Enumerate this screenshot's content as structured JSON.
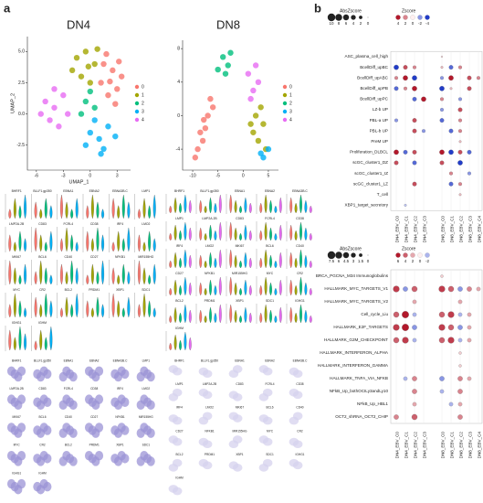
{
  "panel_labels": [
    "a",
    "b"
  ],
  "umaps": [
    {
      "type": "scatter",
      "title": "DN4",
      "x_label": "UMAP_1",
      "y_label": "UMAP_2",
      "xlim": [
        -7,
        4.5
      ],
      "ylim": [
        -4.5,
        6.2
      ],
      "xticks": [
        -6,
        -3,
        0,
        3
      ],
      "yticks": [
        -2.5,
        {
          "value": 0,
          "label": "0.0"
        },
        2.5,
        {
          "value": 5,
          "label": "5.0"
        }
      ],
      "series": [
        {
          "name": "0",
          "color": "#f8766d",
          "x": [
            1.5,
            2.5,
            3,
            2,
            3.5,
            1.2,
            2.8,
            1.8,
            3.2,
            2.2
          ],
          "y": [
            4,
            3.5,
            2,
            1.5,
            3,
            2.5,
            0.8,
            4.8,
            4.2,
            2.6
          ]
        },
        {
          "name": "1",
          "color": "#a3a500",
          "x": [
            -1.5,
            -0.5,
            0.5,
            -1,
            0,
            -2,
            0.8,
            -0.2
          ],
          "y": [
            4.5,
            5,
            4,
            3,
            2.5,
            3.5,
            5.2,
            3.8
          ]
        },
        {
          "name": "2",
          "color": "#00bf7d",
          "x": [
            -0.5,
            0.5,
            -1,
            0
          ],
          "y": [
            1,
            0.5,
            0,
            1.8
          ]
        },
        {
          "name": "3",
          "color": "#00b0f6",
          "x": [
            0,
            1,
            2,
            1.5,
            0.5,
            2.8,
            -0.5,
            1.2
          ],
          "y": [
            -1.5,
            -2,
            -1,
            -2.8,
            -0.5,
            -1.8,
            -2.5,
            -3.2
          ]
        },
        {
          "name": "4",
          "color": "#e76bf3",
          "x": [
            -5,
            -4,
            -3,
            -4.5,
            -3.5,
            -2.5,
            -5.5,
            -4
          ],
          "y": [
            1,
            0.5,
            1.5,
            -0.5,
            -1,
            0,
            0,
            2
          ]
        }
      ]
    },
    {
      "type": "scatter",
      "title": "DN8",
      "xlim": [
        -12,
        7
      ],
      "ylim": [
        -6.5,
        9
      ],
      "xticks": [
        -10,
        -5,
        0,
        5
      ],
      "yticks": [
        -4,
        0,
        4,
        8
      ],
      "series": [
        {
          "name": "0",
          "color": "#f8766d",
          "x": [
            -9,
            -8,
            -7.5,
            -8.5,
            -7,
            -6,
            -6.5,
            -9.5,
            -7.8
          ],
          "y": [
            -4,
            -3,
            -1.5,
            -2,
            0,
            1,
            2,
            -5,
            -0.5
          ]
        },
        {
          "name": "1",
          "color": "#a3a500",
          "x": [
            2,
            3,
            4,
            2.5,
            4.5,
            3.5,
            1.5
          ],
          "y": [
            -2,
            -3,
            -1,
            0,
            -4,
            1,
            -1
          ]
        },
        {
          "name": "2",
          "color": "#00bf7d",
          "x": [
            -4,
            -3,
            -5,
            -2.5,
            -3.5
          ],
          "y": [
            7,
            6,
            5.5,
            7.5,
            5
          ]
        },
        {
          "name": "3",
          "color": "#00b0f6",
          "x": [
            4,
            5,
            3.5
          ],
          "y": [
            -5,
            -4,
            -4.5
          ]
        },
        {
          "name": "4",
          "color": "#e76bf3",
          "x": [
            1,
            2,
            2.5,
            1.5,
            3
          ],
          "y": [
            5,
            3,
            6,
            2,
            4
          ]
        }
      ]
    }
  ],
  "genes": [
    "BHRF1",
    "BLLF1.gp350",
    "EBNA1",
    "EBNA2",
    "EBNA3B.C",
    "LMP1",
    "LMP2A.2B",
    "CD83",
    "FCRL4",
    "CD38",
    "IRF4",
    "LMO2",
    "MKI67",
    "BCL6",
    "CD40",
    "CD27",
    "NFKB1",
    "MIR155HG",
    "MYC",
    "CR2",
    "BCL2",
    "PRDM1",
    "XBP1",
    "SDC1",
    "IGHG1",
    "IGHM"
  ],
  "columns": [
    "DN4_EBV_C0",
    "DN4_EBV_C1",
    "DN4_EBV_C2",
    "DN4_EBV_C3",
    "DN8_EBV_C0",
    "DN8_EBV_C1",
    "DN8_EBV_C2",
    "DN8_EBV_C3",
    "DN8_EBV_C4"
  ],
  "dotplots": [
    {
      "abs_title": "AbsZscore",
      "abs_ticks": [
        10,
        8,
        6,
        4,
        2,
        0
      ],
      "z_title": "Zscore",
      "z_ticks": [
        4,
        2,
        0,
        -2,
        -4
      ],
      "rows": [
        "ASC_plasma_cell_high",
        "BcellDiff_upBC",
        "BcellDiff_upABC",
        "BcellDiff_upPB",
        "BcellDiff_upPC",
        "LZ-b UP",
        "PBL-a UP",
        "PBL-b UP",
        "PreM UP",
        "Proliferation_DLBCL",
        "scGC_cluster1_DZ",
        "scGC_cluster1_IZ",
        "scGC_cluster1_LZ",
        "T_cell",
        "XBP1_target_secretory"
      ],
      "zscores": [
        [
          null,
          null,
          null,
          null,
          0.5,
          null,
          null,
          null,
          null
        ],
        [
          -4,
          3,
          2,
          null,
          1,
          -3,
          2,
          null,
          null
        ],
        [
          2,
          4,
          -4,
          null,
          -2,
          4,
          null,
          3,
          2
        ],
        [
          -3,
          2,
          4,
          null,
          -4,
          1,
          null,
          3,
          null
        ],
        [
          null,
          null,
          -3,
          4,
          2,
          null,
          -2,
          null,
          null
        ],
        [
          null,
          null,
          null,
          null,
          -2,
          null,
          3,
          null,
          null
        ],
        [
          -2,
          null,
          3,
          null,
          -3,
          null,
          2,
          null,
          null
        ],
        [
          null,
          null,
          3,
          -2,
          null,
          -3,
          2,
          null,
          null
        ],
        [
          null,
          null,
          null,
          null,
          null,
          null,
          1,
          null,
          null
        ],
        [
          4,
          -3,
          3,
          null,
          4,
          -4,
          3,
          -3,
          null
        ],
        [
          3,
          null,
          -3,
          null,
          3,
          null,
          -4,
          null,
          null
        ],
        [
          null,
          null,
          null,
          null,
          null,
          2,
          null,
          -2,
          null
        ],
        [
          null,
          null,
          3,
          null,
          null,
          -3,
          2,
          null,
          null
        ],
        [
          null,
          null,
          null,
          null,
          null,
          null,
          1,
          null,
          null
        ],
        [
          null,
          -1,
          null,
          null,
          null,
          null,
          null,
          null,
          null
        ]
      ]
    },
    {
      "abs_title": "AbsZscore",
      "abs_ticks": [
        7.5,
        6,
        4.5,
        3,
        1.5,
        0
      ],
      "z_title": "Zscore",
      "z_ticks": [
        6,
        4,
        2,
        0,
        -2
      ],
      "rows": [
        "BRCA_PGCNA_M34 Immunoglobulins",
        "HALLMARK_MYC_TARGETS_V1",
        "HALLMARK_MYC_TARGETS_V2",
        "Cell_cycle_Liu",
        "HALLMARK_E2F_TARGETS",
        "HALLMARK_G2M_CHECKPOINT",
        "HALLMARK_INTERFERON_ALPHA",
        "HALLMARK_INTERFERON_GAMMA",
        "HALLMARK_TNFA_VIA_NFKB",
        "NFkB_Up_bothOCILy3andLy10",
        "NFkB_Up_HBL1",
        "OCT2_shRNA_OCT2_CHIP"
      ],
      "zscores": [
        [
          null,
          null,
          null,
          null,
          1,
          null,
          null,
          null,
          null
        ],
        [
          5,
          -3,
          4,
          null,
          5,
          4,
          -3,
          3,
          2
        ],
        [
          null,
          null,
          2,
          null,
          null,
          null,
          2,
          null,
          null
        ],
        [
          4,
          6,
          -2,
          null,
          4,
          5,
          -2,
          2,
          null
        ],
        [
          5,
          6,
          -3,
          null,
          5,
          4,
          -3,
          2,
          null
        ],
        [
          4,
          5,
          -2,
          null,
          4,
          5,
          -2,
          2,
          null
        ],
        [
          null,
          null,
          null,
          null,
          null,
          null,
          1,
          null,
          null
        ],
        [
          null,
          null,
          null,
          null,
          null,
          null,
          1,
          null,
          null
        ],
        [
          null,
          -2,
          3,
          null,
          -3,
          null,
          3,
          2,
          null
        ],
        [
          null,
          null,
          3,
          null,
          -2,
          null,
          3,
          null,
          null
        ],
        [
          null,
          null,
          2,
          null,
          null,
          -2,
          2,
          null,
          null
        ],
        [
          3,
          null,
          4,
          null,
          null,
          null,
          3,
          null,
          null
        ]
      ]
    }
  ]
}
